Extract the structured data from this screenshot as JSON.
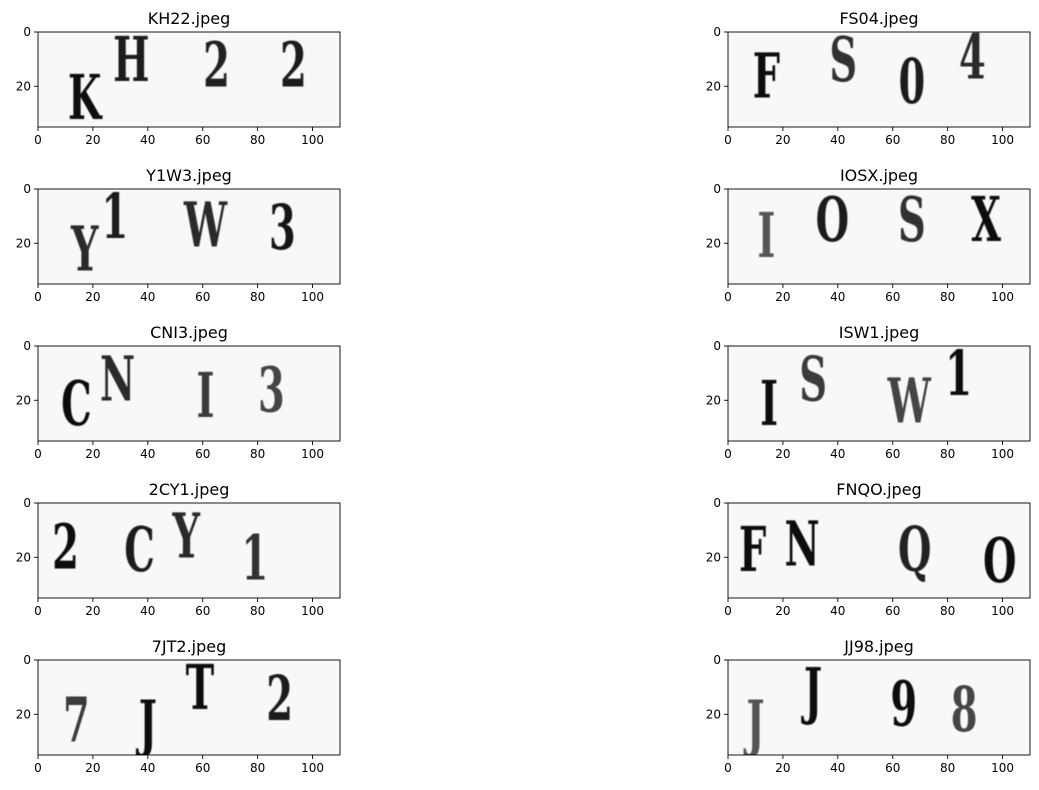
{
  "figure": {
    "panels": [
      {
        "title": "KH22.jpeg",
        "chars": [
          {
            "ch": "K",
            "x": 17,
            "y": 24,
            "shade": "#111111"
          },
          {
            "ch": "H",
            "x": 34,
            "y": 10,
            "shade": "#1a1a1a"
          },
          {
            "ch": "2",
            "x": 65,
            "y": 12,
            "shade": "#222222"
          },
          {
            "ch": "2",
            "x": 93,
            "y": 12,
            "shade": "#1a1a1a"
          }
        ]
      },
      {
        "title": "FS04.jpeg",
        "chars": [
          {
            "ch": "F",
            "x": 14,
            "y": 16,
            "shade": "#111111"
          },
          {
            "ch": "S",
            "x": 42,
            "y": 10,
            "shade": "#333333"
          },
          {
            "ch": "0",
            "x": 67,
            "y": 18,
            "shade": "#1e1e1e"
          },
          {
            "ch": "4",
            "x": 89,
            "y": 9,
            "shade": "#2b2b2b"
          }
        ]
      },
      {
        "title": "Y1W3.jpeg",
        "chars": [
          {
            "ch": "Y",
            "x": 17,
            "y": 22,
            "shade": "#2a2a2a"
          },
          {
            "ch": "1",
            "x": 28,
            "y": 10,
            "shade": "#1c1c1c"
          },
          {
            "ch": "W",
            "x": 61,
            "y": 13,
            "shade": "#2a2a2a"
          },
          {
            "ch": "3",
            "x": 89,
            "y": 14,
            "shade": "#151515"
          }
        ]
      },
      {
        "title": "IOSX.jpeg",
        "chars": [
          {
            "ch": "I",
            "x": 14,
            "y": 17,
            "shade": "#555555"
          },
          {
            "ch": "O",
            "x": 38,
            "y": 11,
            "shade": "#1e1e1e"
          },
          {
            "ch": "S",
            "x": 67,
            "y": 11,
            "shade": "#333333"
          },
          {
            "ch": "X",
            "x": 94,
            "y": 11,
            "shade": "#0e0e0e"
          }
        ]
      },
      {
        "title": "CNI3.jpeg",
        "chars": [
          {
            "ch": "C",
            "x": 14,
            "y": 21,
            "shade": "#111111"
          },
          {
            "ch": "N",
            "x": 29,
            "y": 12,
            "shade": "#2a2a2a"
          },
          {
            "ch": "I",
            "x": 61,
            "y": 18,
            "shade": "#3a3a3a"
          },
          {
            "ch": "3",
            "x": 85,
            "y": 16,
            "shade": "#444444"
          }
        ]
      },
      {
        "title": "ISW1.jpeg",
        "chars": [
          {
            "ch": "I",
            "x": 15,
            "y": 21,
            "shade": "#111111"
          },
          {
            "ch": "S",
            "x": 31,
            "y": 12,
            "shade": "#3a3a3a"
          },
          {
            "ch": "W",
            "x": 66,
            "y": 20,
            "shade": "#444444"
          },
          {
            "ch": "1",
            "x": 84,
            "y": 10,
            "shade": "#111111"
          }
        ]
      },
      {
        "title": "2CY1.jpeg",
        "chars": [
          {
            "ch": "2",
            "x": 10,
            "y": 16,
            "shade": "#111111"
          },
          {
            "ch": "C",
            "x": 37,
            "y": 17,
            "shade": "#1a1a1a"
          },
          {
            "ch": "Y",
            "x": 54,
            "y": 12,
            "shade": "#2b2b2b"
          },
          {
            "ch": "1",
            "x": 79,
            "y": 20,
            "shade": "#333333"
          }
        ]
      },
      {
        "title": "FNQO.jpeg",
        "chars": [
          {
            "ch": "F",
            "x": 9,
            "y": 17,
            "shade": "#111111"
          },
          {
            "ch": "N",
            "x": 27,
            "y": 15,
            "shade": "#111111"
          },
          {
            "ch": "Q",
            "x": 68,
            "y": 17,
            "shade": "#222222"
          },
          {
            "ch": "O",
            "x": 99,
            "y": 21,
            "shade": "#111111"
          }
        ]
      },
      {
        "title": "7JT2.jpeg",
        "chars": [
          {
            "ch": "7",
            "x": 14,
            "y": 22,
            "shade": "#3a3a3a"
          },
          {
            "ch": "J",
            "x": 40,
            "y": 23,
            "shade": "#111111"
          },
          {
            "ch": "T",
            "x": 59,
            "y": 10,
            "shade": "#111111"
          },
          {
            "ch": "2",
            "x": 88,
            "y": 14,
            "shade": "#1e1e1e"
          }
        ]
      },
      {
        "title": "JJ98.jpeg",
        "chars": [
          {
            "ch": "J",
            "x": 10,
            "y": 23,
            "shade": "#555555"
          },
          {
            "ch": "J",
            "x": 31,
            "y": 11,
            "shade": "#111111"
          },
          {
            "ch": "9",
            "x": 64,
            "y": 16,
            "shade": "#111111"
          },
          {
            "ch": "8",
            "x": 86,
            "y": 18,
            "shade": "#444444"
          }
        ]
      }
    ],
    "xticks": [
      "0",
      "20",
      "40",
      "60",
      "80",
      "100"
    ],
    "yticks": [
      "0",
      "20"
    ]
  }
}
